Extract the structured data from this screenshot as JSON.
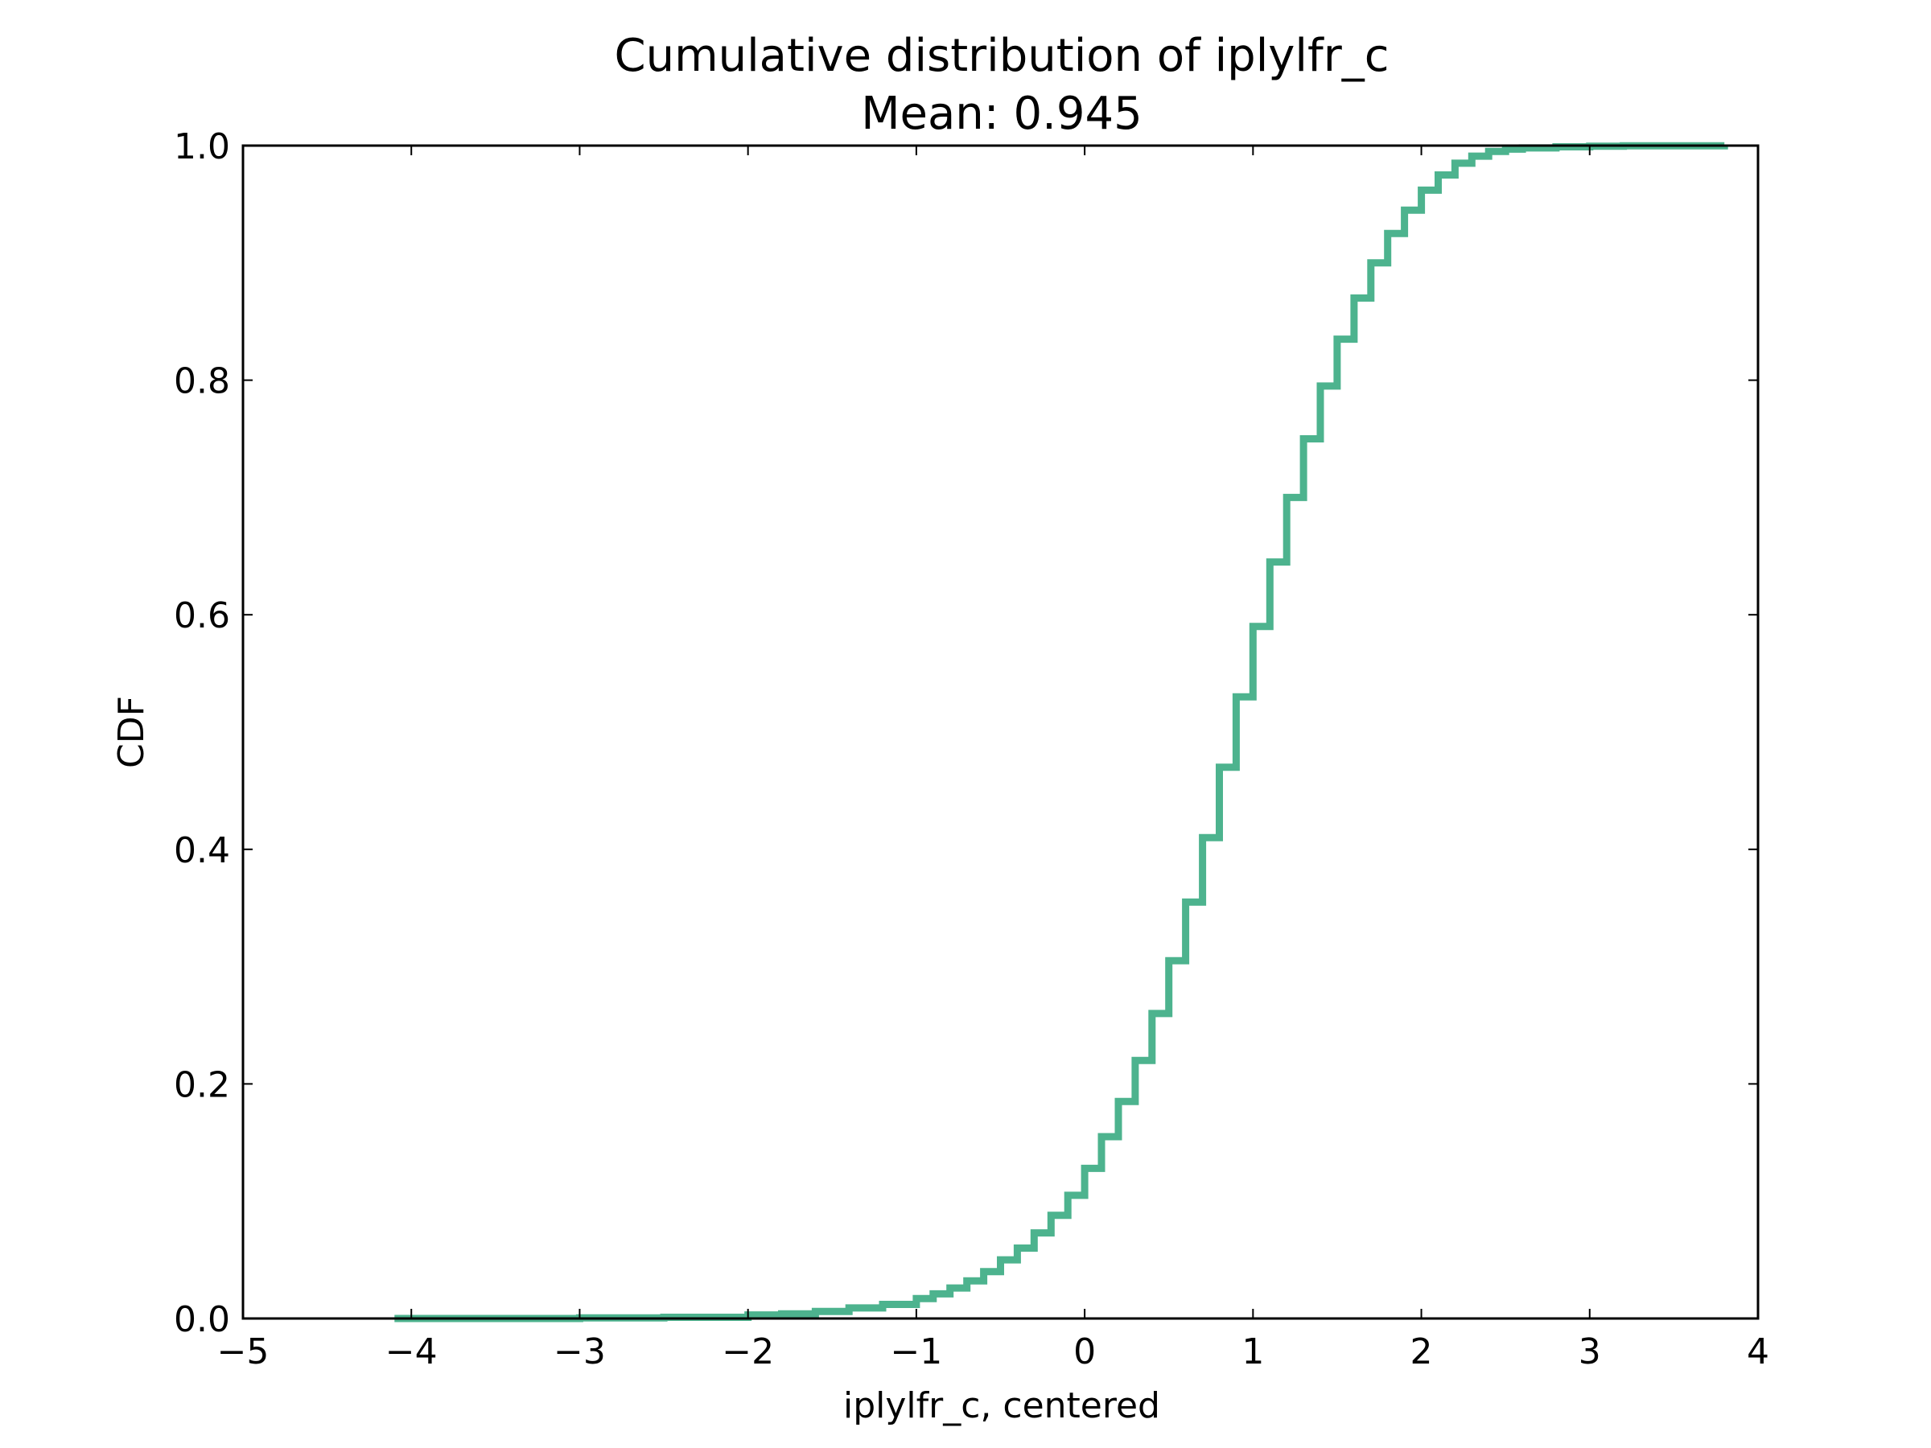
{
  "chart_data": {
    "type": "line",
    "step": true,
    "title": "Cumulative distribution of iplylfr_c",
    "subtitle": "Mean: 0.945",
    "xlabel": "iplylfr_c, centered",
    "ylabel": "CDF",
    "xlim": [
      -5,
      4
    ],
    "ylim": [
      0.0,
      1.0
    ],
    "xticks": [
      -5,
      -4,
      -3,
      -2,
      -1,
      0,
      1,
      2,
      3,
      4
    ],
    "xtick_labels": [
      "−5",
      "−4",
      "−3",
      "−2",
      "−1",
      "0",
      "1",
      "2",
      "3",
      "4"
    ],
    "yticks": [
      0.0,
      0.2,
      0.4,
      0.6,
      0.8,
      1.0
    ],
    "ytick_labels": [
      "0.0",
      "0.2",
      "0.4",
      "0.6",
      "0.8",
      "1.0"
    ],
    "grid": false,
    "line_color": "#4db38e",
    "series": [
      {
        "x": [
          -4.1,
          -3.0,
          -2.5,
          -2.0,
          -1.8,
          -1.6,
          -1.4,
          -1.2,
          -1.0,
          -0.9,
          -0.8,
          -0.7,
          -0.6,
          -0.5,
          -0.4,
          -0.3,
          -0.2,
          -0.1,
          0.0,
          0.1,
          0.2,
          0.3,
          0.4,
          0.5,
          0.6,
          0.7,
          0.8,
          0.9,
          1.0,
          1.1,
          1.2,
          1.3,
          1.4,
          1.5,
          1.6,
          1.7,
          1.8,
          1.9,
          2.0,
          2.1,
          2.2,
          2.3,
          2.4,
          2.5,
          2.6,
          2.8,
          3.0,
          3.2,
          3.8
        ],
        "y": [
          0.0,
          0.0005,
          0.001,
          0.003,
          0.004,
          0.006,
          0.009,
          0.012,
          0.017,
          0.021,
          0.026,
          0.032,
          0.04,
          0.05,
          0.06,
          0.073,
          0.088,
          0.105,
          0.128,
          0.155,
          0.185,
          0.22,
          0.26,
          0.305,
          0.355,
          0.41,
          0.47,
          0.53,
          0.59,
          0.645,
          0.7,
          0.75,
          0.795,
          0.835,
          0.87,
          0.9,
          0.925,
          0.945,
          0.962,
          0.975,
          0.985,
          0.991,
          0.995,
          0.997,
          0.998,
          0.999,
          0.9995,
          0.9998,
          1.0
        ]
      }
    ]
  }
}
